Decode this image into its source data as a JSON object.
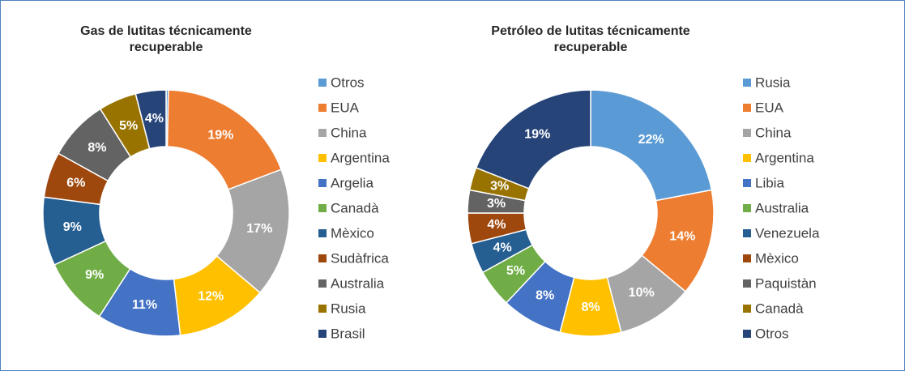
{
  "chart_data": [
    {
      "type": "donut",
      "title": "Gas de lutitas técnicamente recuperable",
      "categories": [
        "Otros",
        "EUA",
        "China",
        "Argentina",
        "Argelia",
        "Canadà",
        "Mèxico",
        "Sudàfrica",
        "Australia",
        "Rusia",
        "Brasil"
      ],
      "values": [
        0.3,
        19,
        17,
        12,
        11,
        9,
        9,
        6,
        8,
        5,
        4
      ],
      "value_labels": [
        null,
        "19%",
        "17%",
        "12%",
        "11%",
        "9%",
        "9%",
        "6%",
        "8%",
        "5%",
        "4%"
      ],
      "colors": [
        "#5b9bd5",
        "#ed7d31",
        "#a5a5a5",
        "#ffc000",
        "#4472c4",
        "#70ad47",
        "#255e91",
        "#9e480e",
        "#636363",
        "#997300",
        "#264478"
      ],
      "legend": "right"
    },
    {
      "type": "donut",
      "title": "Petróleo de lutitas técnicamente recuperable",
      "categories": [
        "Rusia",
        "EUA",
        "China",
        "Argentina",
        "Libia",
        "Australia",
        "Venezuela",
        "Mèxico",
        "Paquistàn",
        "Canadà",
        "Otros"
      ],
      "values": [
        22,
        14,
        10,
        8,
        8,
        5,
        4,
        4,
        3,
        3,
        19
      ],
      "value_labels": [
        "22%",
        "14%",
        "10%",
        "8%",
        "8%",
        "5%",
        "4%",
        "4%",
        "3%",
        "3%",
        "19%"
      ],
      "colors": [
        "#5b9bd5",
        "#ed7d31",
        "#a5a5a5",
        "#ffc000",
        "#4472c4",
        "#70ad47",
        "#255e91",
        "#9e480e",
        "#636363",
        "#997300",
        "#264478"
      ],
      "legend": "right"
    }
  ]
}
